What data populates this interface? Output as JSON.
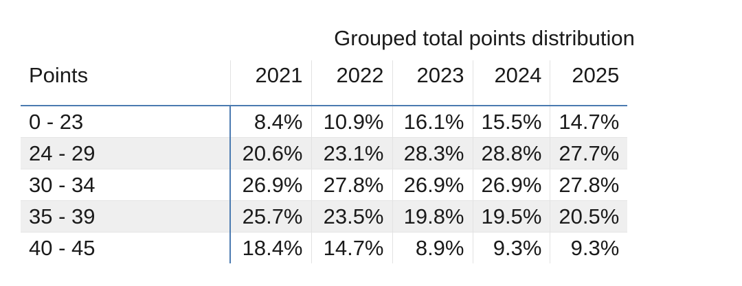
{
  "chart_data": {
    "type": "table",
    "title": "Grouped total points distribution",
    "columns": [
      "Points",
      "2021",
      "2022",
      "2023",
      "2024",
      "2025"
    ],
    "rows": [
      [
        "0 - 23",
        "8.4%",
        "10.9%",
        "16.1%",
        "15.5%",
        "14.7%"
      ],
      [
        "24 - 29",
        "20.6%",
        "23.1%",
        "28.3%",
        "28.8%",
        "27.7%"
      ],
      [
        "30 - 34",
        "26.9%",
        "27.8%",
        "26.9%",
        "26.9%",
        "27.8%"
      ],
      [
        "35 - 39",
        "25.7%",
        "23.5%",
        "19.8%",
        "19.5%",
        "20.5%"
      ],
      [
        "40 - 45",
        "18.4%",
        "14.7%",
        "8.9%",
        "9.3%",
        "9.3%"
      ]
    ],
    "header_rule_color": "#4a7ab0",
    "stripe_color": "#efefef"
  }
}
